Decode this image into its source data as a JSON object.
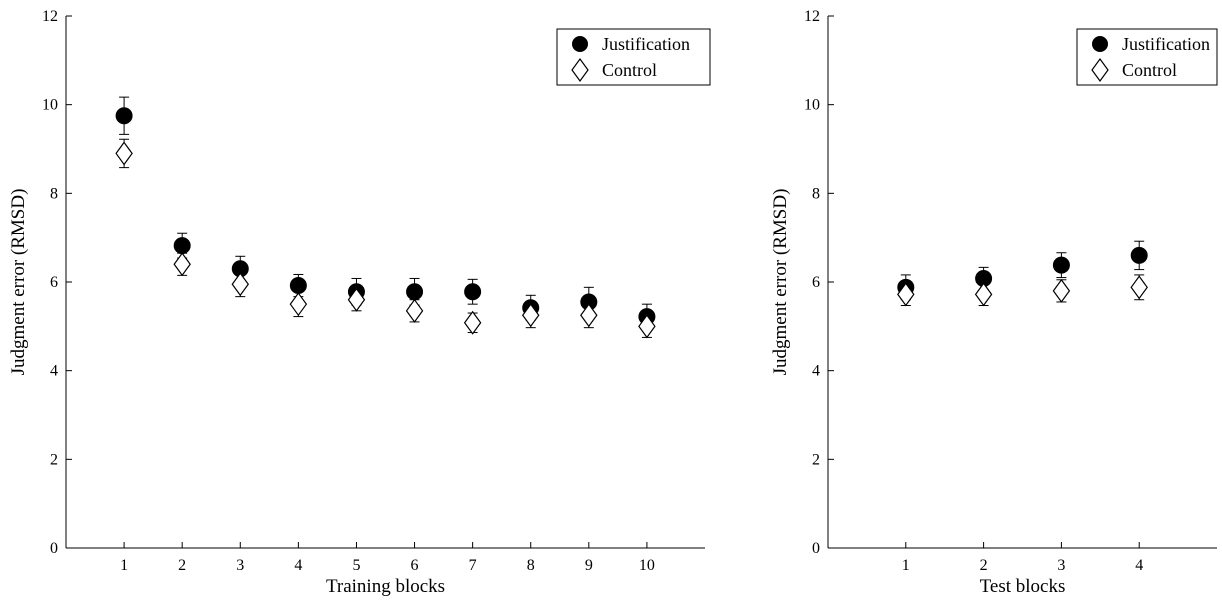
{
  "chart_data": [
    {
      "type": "scatter",
      "title": "",
      "xlabel": "Training blocks",
      "ylabel": "Judgment error (RMSD)",
      "ylim": [
        0,
        12
      ],
      "xlim": [
        0,
        11
      ],
      "x": [
        1,
        2,
        3,
        4,
        5,
        6,
        7,
        8,
        9,
        10
      ],
      "xticks": [
        "1",
        "2",
        "3",
        "4",
        "5",
        "6",
        "7",
        "8",
        "9",
        "10"
      ],
      "yticks": [
        "0",
        "2",
        "4",
        "6",
        "8",
        "10",
        "12"
      ],
      "grid": false,
      "legend_position": "top-right",
      "series": [
        {
          "name": "Justification",
          "marker": "filled-circle",
          "values": [
            9.75,
            6.82,
            6.3,
            5.92,
            5.78,
            5.78,
            5.78,
            5.42,
            5.55,
            5.22
          ],
          "error": [
            0.42,
            0.28,
            0.28,
            0.25,
            0.3,
            0.3,
            0.28,
            0.28,
            0.33,
            0.28
          ]
        },
        {
          "name": "Control",
          "marker": "open-diamond",
          "values": [
            8.9,
            6.4,
            5.95,
            5.5,
            5.6,
            5.35,
            5.08,
            5.25,
            5.25,
            5.0
          ],
          "error": [
            0.32,
            0.25,
            0.28,
            0.28,
            0.25,
            0.25,
            0.22,
            0.28,
            0.28,
            0.25
          ]
        }
      ]
    },
    {
      "type": "scatter",
      "title": "",
      "xlabel": "Test blocks",
      "ylabel": "Judgment error (RMSD)",
      "ylim": [
        0,
        12
      ],
      "xlim": [
        0,
        5
      ],
      "x": [
        1,
        2,
        3,
        4
      ],
      "xticks": [
        "1",
        "2",
        "3",
        "4"
      ],
      "yticks": [
        "0",
        "2",
        "4",
        "6",
        "8",
        "10",
        "12"
      ],
      "grid": false,
      "legend_position": "top-right",
      "series": [
        {
          "name": "Justification",
          "marker": "filled-circle",
          "values": [
            5.88,
            6.08,
            6.38,
            6.6
          ],
          "error": [
            0.28,
            0.25,
            0.28,
            0.32
          ]
        },
        {
          "name": "Control",
          "marker": "open-diamond",
          "values": [
            5.72,
            5.72,
            5.8,
            5.88
          ],
          "error": [
            0.25,
            0.25,
            0.25,
            0.28
          ]
        }
      ]
    }
  ]
}
